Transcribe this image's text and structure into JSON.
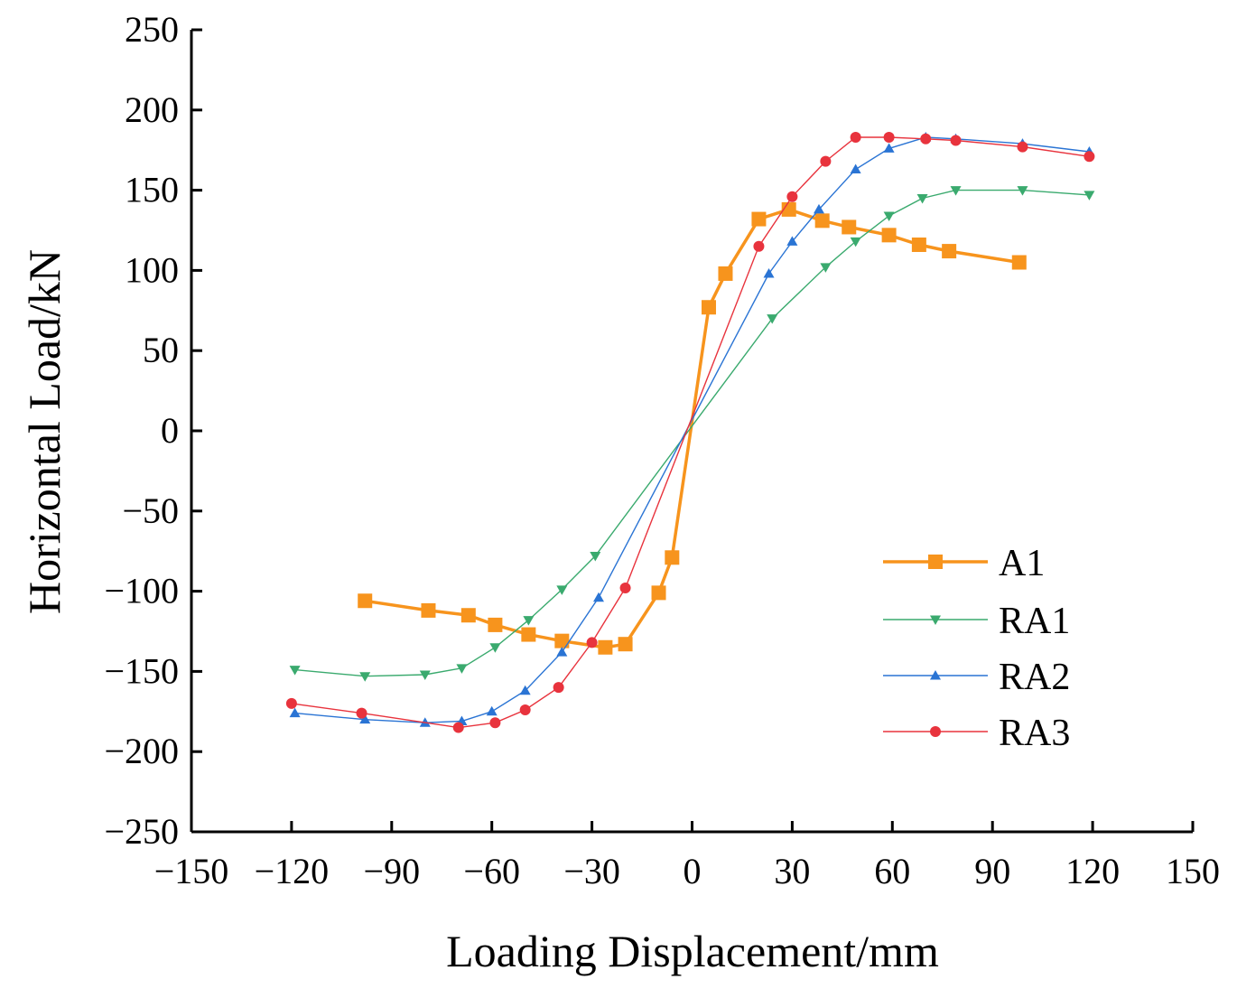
{
  "chart_data": {
    "type": "line",
    "title": "",
    "xlabel": "Loading Displacement/mm",
    "ylabel": "Horizontal Load/kN",
    "xlim": [
      -150,
      150
    ],
    "ylim": [
      -250,
      250
    ],
    "x_ticks": [
      -150,
      -120,
      -90,
      -60,
      -30,
      0,
      30,
      60,
      90,
      120,
      150
    ],
    "y_ticks": [
      250,
      200,
      150,
      100,
      50,
      0,
      -50,
      -100,
      -150,
      -200,
      -250
    ],
    "x_tick_labels": [
      "−150",
      "−120",
      "−90",
      "−60",
      "−30",
      "0",
      "30",
      "60",
      "90",
      "120",
      "150"
    ],
    "y_tick_labels": [
      "250",
      "200",
      "150",
      "100",
      "50",
      "0",
      "−50",
      "−100",
      "−150",
      "−200",
      "−250"
    ],
    "grid": false,
    "legend_position": "bottom-right",
    "series": [
      {
        "name": "A1",
        "color": "#F7941D",
        "marker": "square",
        "x": [
          -98,
          -79,
          -67,
          -59,
          -49,
          -39,
          -26,
          -20,
          -10,
          -6,
          5,
          10,
          20,
          29,
          39,
          47,
          59,
          68,
          77,
          98
        ],
        "y": [
          -106,
          -112,
          -115,
          -121,
          -127,
          -131,
          -135,
          -133,
          -101,
          -79,
          77,
          98,
          132,
          138,
          131,
          127,
          122,
          116,
          112,
          105
        ]
      },
      {
        "name": "RA1",
        "color": "#3AAA6E",
        "marker": "triangle-down",
        "x": [
          -119,
          -98,
          -80,
          -69,
          -59,
          -49,
          -39,
          -29,
          24,
          40,
          49,
          59,
          69,
          79,
          99,
          119
        ],
        "y": [
          -149,
          -153,
          -152,
          -148,
          -135,
          -118,
          -99,
          -78,
          70,
          102,
          118,
          134,
          145,
          150,
          150,
          147
        ]
      },
      {
        "name": "RA2",
        "color": "#2A74D4",
        "marker": "triangle-up",
        "x": [
          -119,
          -98,
          -80,
          -69,
          -60,
          -50,
          -39,
          -28,
          23,
          30,
          38,
          49,
          59,
          70,
          79,
          99,
          119
        ],
        "y": [
          -176,
          -180,
          -182,
          -181,
          -175,
          -162,
          -138,
          -104,
          98,
          118,
          138,
          163,
          176,
          183,
          182,
          179,
          174
        ]
      },
      {
        "name": "RA3",
        "color": "#E8333D",
        "marker": "circle",
        "x": [
          -120,
          -99,
          -70,
          -59,
          -50,
          -40,
          -30,
          -20,
          20,
          30,
          40,
          49,
          59,
          70,
          79,
          99,
          119
        ],
        "y": [
          -170,
          -176,
          -185,
          -182,
          -174,
          -160,
          -132,
          -98,
          115,
          146,
          168,
          183,
          183,
          182,
          181,
          177,
          171
        ]
      }
    ]
  }
}
